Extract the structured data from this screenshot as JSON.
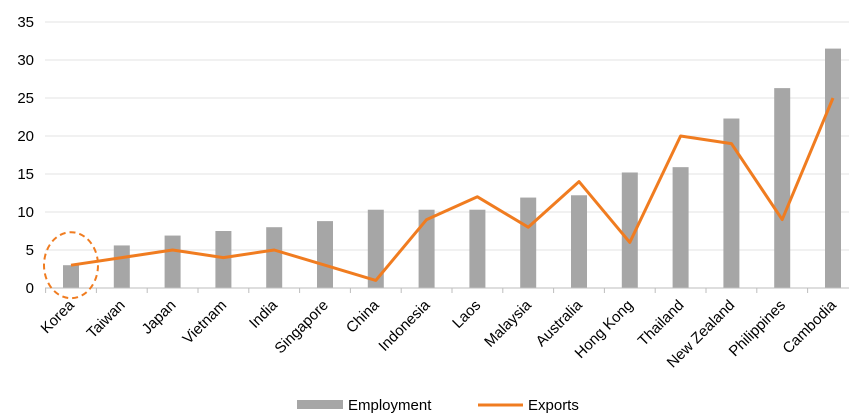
{
  "chart_data": {
    "type": "bar",
    "categories": [
      "Korea",
      "Taiwan",
      "Japan",
      "Vietnam",
      "India",
      "Singapore",
      "China",
      "Indonesia",
      "Laos",
      "Malaysia",
      "Australia",
      "Hong Kong",
      "Thailand",
      "New Zealand",
      "Philippines",
      "Cambodia"
    ],
    "series": [
      {
        "name": "Employment",
        "type": "bar",
        "color": "#a6a6a6",
        "values": [
          3.0,
          5.6,
          6.9,
          7.5,
          8.0,
          8.8,
          10.3,
          10.3,
          10.3,
          11.9,
          12.2,
          15.2,
          15.9,
          22.3,
          26.3,
          31.5
        ]
      },
      {
        "name": "Exports",
        "type": "line",
        "color": "#f07c20",
        "values": [
          3,
          4,
          5,
          4,
          5,
          3,
          1,
          9,
          12,
          8,
          14,
          6,
          20,
          19,
          9,
          25
        ]
      }
    ],
    "yticks": [
      "0",
      "5",
      "10",
      "15",
      "20",
      "25",
      "30",
      "35"
    ],
    "ylim": [
      0,
      35
    ],
    "grid": true,
    "legend_position": "bottom",
    "highlight": {
      "category": "Korea",
      "shape": "dashed-ellipse",
      "color": "#f07c20"
    }
  }
}
